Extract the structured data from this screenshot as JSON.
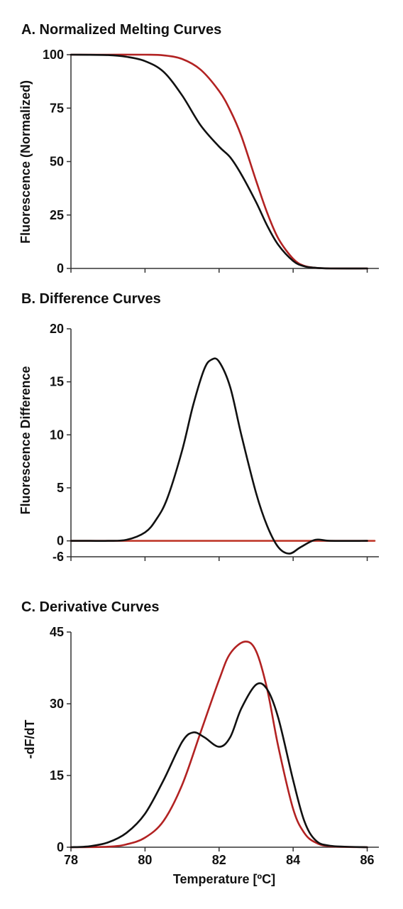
{
  "chart_data": [
    {
      "type": "line",
      "title": "A. Normalized Melting Curves",
      "xlabel": "",
      "ylabel": "Fluorescence (Normalized)",
      "xlim": [
        78,
        86.2
      ],
      "ylim": [
        0,
        100
      ],
      "yticks": [
        0,
        25,
        50,
        75,
        100
      ],
      "xticks": [
        78,
        80,
        82,
        84,
        86
      ],
      "show_xtick_labels": false,
      "series": [
        {
          "color": "#b22222",
          "x": [
            78,
            79,
            80,
            80.5,
            81,
            81.5,
            82,
            82.3,
            82.6,
            83,
            83.3,
            83.6,
            84,
            84.3,
            84.6,
            85,
            86
          ],
          "y": [
            100,
            100,
            100,
            99.7,
            98,
            93,
            83,
            74,
            62,
            41,
            26,
            14,
            4.5,
            1.2,
            0.3,
            0,
            0
          ]
        },
        {
          "color": "#111111",
          "x": [
            78,
            79,
            79.5,
            80,
            80.5,
            81,
            81.5,
            82,
            82.3,
            82.6,
            83,
            83.3,
            83.6,
            84,
            84.3,
            84.6,
            85,
            86
          ],
          "y": [
            100,
            99.8,
            99,
            97,
            92,
            81,
            67,
            57,
            52,
            44,
            31,
            20,
            11,
            3.5,
            1,
            0.3,
            0,
            0
          ]
        }
      ]
    },
    {
      "type": "line",
      "title": "B. Difference Curves",
      "xlabel": "",
      "ylabel": "Fluorescence Difference",
      "xlim": [
        78,
        86.2
      ],
      "ylim": [
        -1.5,
        20
      ],
      "yticks": [
        -6,
        0,
        5,
        10,
        15,
        20
      ],
      "xticks": [
        78,
        80,
        82,
        84,
        86
      ],
      "show_xtick_labels": false,
      "series": [
        {
          "color": "#c0392b",
          "x": [
            78,
            86.2
          ],
          "y": [
            0,
            0
          ]
        },
        {
          "color": "#111111",
          "x": [
            78,
            78.5,
            79,
            79.5,
            80,
            80.3,
            80.6,
            81,
            81.3,
            81.6,
            81.8,
            82,
            82.3,
            82.6,
            83,
            83.3,
            83.6,
            83.9,
            84.2,
            84.6,
            85,
            86
          ],
          "y": [
            0,
            0,
            0,
            0.1,
            0.8,
            2,
            4,
            8.5,
            12.8,
            16.2,
            17.1,
            16.9,
            14.5,
            10,
            4.5,
            1.4,
            -0.6,
            -1.2,
            -0.6,
            0.1,
            0,
            0
          ]
        }
      ]
    },
    {
      "type": "line",
      "title": "C. Derivative Curves",
      "xlabel": "Temperature [ºC]",
      "ylabel": "-dF/dT",
      "xlim": [
        78,
        86.2
      ],
      "ylim": [
        0,
        45
      ],
      "yticks": [
        0,
        15,
        30,
        45
      ],
      "xticks": [
        78,
        80,
        82,
        84,
        86
      ],
      "show_xtick_labels": true,
      "series": [
        {
          "color": "#b22222",
          "x": [
            78,
            79,
            79.5,
            80,
            80.5,
            81,
            81.5,
            82,
            82.3,
            82.7,
            83,
            83.3,
            83.6,
            84,
            84.3,
            84.6,
            85,
            86
          ],
          "y": [
            0,
            0.1,
            0.6,
            2,
            5.5,
            13,
            24,
            35,
            40.5,
            43,
            41,
            33,
            21,
            8,
            3,
            1,
            0.2,
            0
          ]
        },
        {
          "color": "#111111",
          "x": [
            78,
            78.5,
            79,
            79.5,
            80,
            80.5,
            81,
            81.3,
            81.6,
            82,
            82.3,
            82.6,
            83,
            83.3,
            83.6,
            84,
            84.3,
            84.6,
            85,
            86
          ],
          "y": [
            0,
            0.2,
            1,
            3,
            7,
            14,
            22,
            24,
            23,
            21,
            23,
            29,
            34,
            33,
            27,
            14,
            5.5,
            1.5,
            0.3,
            0
          ]
        }
      ]
    }
  ]
}
